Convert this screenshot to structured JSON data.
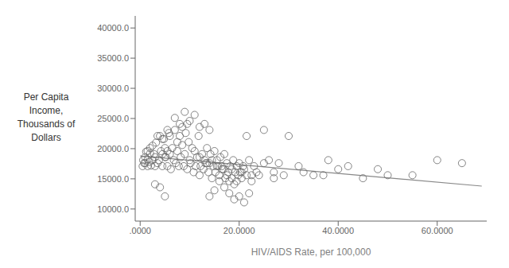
{
  "chart_data": {
    "type": "scatter",
    "xlabel": "HIV/AIDS Rate, per 100,000",
    "ylabel": "Per Capita\nIncome,\nThousands of\nDollars",
    "xlim": [
      -1000,
      70000
    ],
    "ylim": [
      8000,
      42000
    ],
    "xticks": [
      {
        "value": 0,
        "label": ".0000"
      },
      {
        "value": 20000,
        "label": "20.0000"
      },
      {
        "value": 40000,
        "label": "40.0000"
      },
      {
        "value": 60000,
        "label": "60.0000"
      }
    ],
    "yticks": [
      {
        "value": 10000,
        "label": "10000.0"
      },
      {
        "value": 15000,
        "label": "15000.0"
      },
      {
        "value": 20000,
        "label": "20000.0"
      },
      {
        "value": 25000,
        "label": "25000.0"
      },
      {
        "value": 30000,
        "label": "30000.0"
      },
      {
        "value": 35000,
        "label": "35000.0"
      },
      {
        "value": 40000,
        "label": "40000.0"
      }
    ],
    "grid": false,
    "series": [
      {
        "type": "scatter",
        "color": "#666666",
        "marker": "open_circle",
        "x": [
          1200,
          1500,
          1800,
          2000,
          2200,
          2500,
          2800,
          3000,
          3200,
          3500,
          3800,
          4000,
          4200,
          4500,
          4800,
          5000,
          5200,
          5500,
          5800,
          6000,
          6200,
          6500,
          6800,
          7000,
          7200,
          7500,
          7800,
          8000,
          8200,
          8500,
          8800,
          9000,
          9200,
          9500,
          9800,
          10000,
          10200,
          10500,
          10800,
          11000,
          11200,
          11500,
          11800,
          12000,
          12200,
          12500,
          12800,
          13000,
          13200,
          13500,
          13800,
          14000,
          14200,
          14500,
          14800,
          15000,
          15200,
          15500,
          15800,
          16000,
          16200,
          16500,
          16800,
          17000,
          17200,
          17500,
          17800,
          18000,
          18200,
          18500,
          18800,
          19000,
          19200,
          19500,
          19800,
          20000,
          20200,
          20500,
          20800,
          21000,
          21500,
          22000,
          22500,
          23000,
          23500,
          24000,
          25000,
          26000,
          27000,
          28000,
          30000,
          32000,
          35000,
          38000,
          40000,
          42000,
          45000,
          48000,
          50000,
          55000,
          60000,
          65000,
          3000,
          4000,
          5000,
          14000,
          15000,
          16000,
          17000,
          18000,
          19000,
          20000,
          21000,
          22000,
          7000,
          8000,
          9000,
          10000,
          11000,
          12000,
          13000,
          14000,
          6000,
          7500,
          8500,
          9500,
          5500,
          3500,
          4500,
          2000,
          1500,
          1000,
          800,
          600,
          500,
          1000,
          1500,
          2500,
          3000,
          4500,
          5000,
          5500,
          12000,
          13500,
          14500,
          15500,
          16500,
          17500,
          18500,
          19500,
          20500,
          21500,
          22500,
          25000,
          27000,
          29000,
          33000,
          37000
        ],
        "values": [
          19500,
          18200,
          17800,
          19200,
          17200,
          20500,
          19100,
          18600,
          21000,
          17600,
          18100,
          22100,
          19600,
          17100,
          21600,
          20100,
          18600,
          17100,
          22600,
          19100,
          16600,
          20100,
          18100,
          23100,
          17600,
          19600,
          17100,
          22100,
          18600,
          20600,
          17100,
          19100,
          22600,
          16600,
          21100,
          18100,
          17600,
          20100,
          16100,
          19600,
          17100,
          18600,
          22100,
          15600,
          17100,
          19100,
          16600,
          18100,
          17600,
          20100,
          16100,
          17600,
          19100,
          15100,
          17100,
          19600,
          16100,
          18100,
          17100,
          15600,
          18600,
          17100,
          16600,
          19100,
          15100,
          17600,
          16100,
          14600,
          17100,
          16600,
          18100,
          14100,
          16100,
          17100,
          15600,
          17600,
          16100,
          15100,
          17100,
          16600,
          22100,
          18100,
          15600,
          17100,
          16100,
          15600,
          23100,
          18100,
          15100,
          17600,
          22100,
          17100,
          15600,
          18100,
          16600,
          17100,
          15100,
          16600,
          15600,
          15600,
          18100,
          17600,
          14100,
          13600,
          12100,
          12100,
          13100,
          14600,
          13600,
          12600,
          11600,
          12100,
          11100,
          12600,
          25100,
          24100,
          26100,
          24600,
          25600,
          23600,
          24100,
          23100,
          22100,
          21100,
          23600,
          24100,
          23100,
          22100,
          21600,
          20100,
          19600,
          18600,
          17600,
          18100,
          17100,
          17600,
          17100,
          18100,
          17100,
          19100,
          18600,
          19600,
          18600,
          17600,
          18100,
          17100,
          16600,
          15600,
          15100,
          14600,
          16100,
          15600,
          14600,
          17600,
          16100,
          15600,
          16100,
          15600
        ]
      },
      {
        "type": "line",
        "color": "#888888",
        "line_style": "solid",
        "x": [
          0,
          69000
        ],
        "values": [
          18800,
          13800
        ]
      }
    ]
  }
}
